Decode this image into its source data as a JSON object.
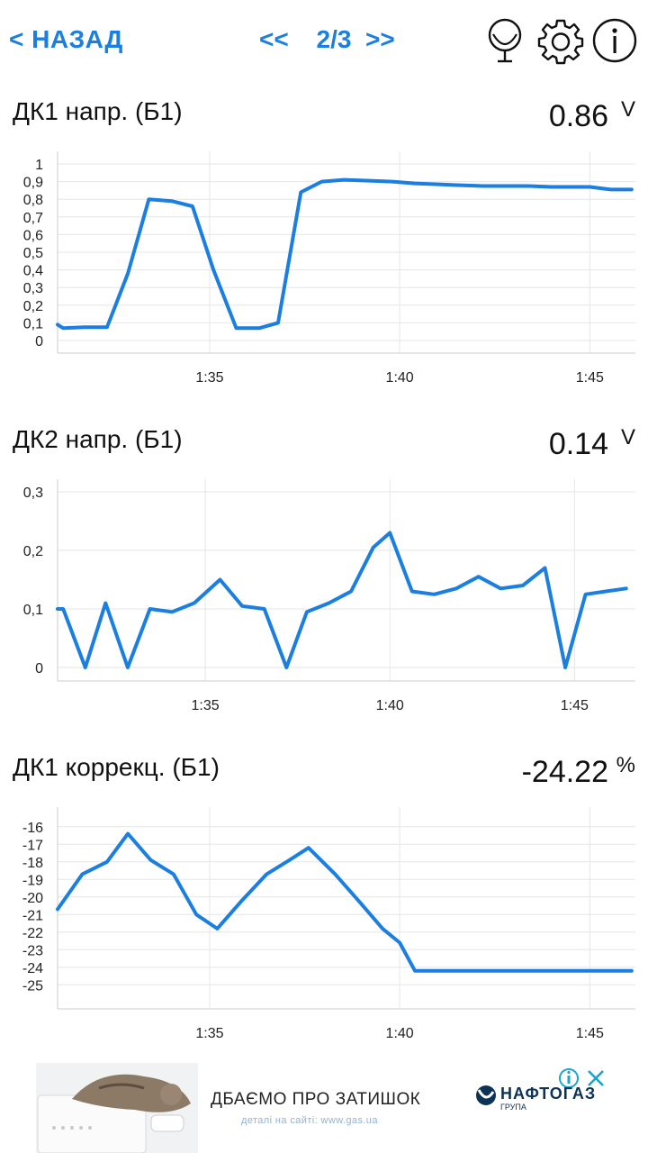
{
  "header": {
    "back_label": "< НАЗАД",
    "prev_label": "<<",
    "page_label": "2/3",
    "next_label": ">>",
    "icons": [
      "mirror-icon",
      "gear-icon",
      "info-icon"
    ]
  },
  "sections": [
    {
      "title": "ДК1 напр. (Б1)",
      "value": "0.86",
      "unit": "V"
    },
    {
      "title": "ДК2 напр. (Б1)",
      "value": "0.14",
      "unit": "V"
    },
    {
      "title": "ДК1 коррекц. (Б1)",
      "value": "-24.22",
      "unit": "%"
    }
  ],
  "chart_data": [
    {
      "type": "line",
      "color": "#1a7fe0",
      "x_ticks": [
        "1:35",
        "1:40",
        "1:45"
      ],
      "y_ticks": [
        "0",
        "0,1",
        "0,2",
        "0,3",
        "0,4",
        "0,5",
        "0,6",
        "0,7",
        "0,8",
        "0,9",
        "1"
      ],
      "ylim": [
        0,
        1
      ],
      "x": [
        "1:31.00",
        "1:31.15",
        "1:31.70",
        "1:32.30",
        "1:32.85",
        "1:33.40",
        "1:34.00",
        "1:34.55",
        "1:35.10",
        "1:35.70",
        "1:36.30",
        "1:36.80",
        "1:37.40",
        "1:37.95",
        "1:38.55",
        "1:39.20",
        "1:39.80",
        "1:40.40",
        "1:40.95",
        "1:41.50",
        "1:42.20",
        "1:42.80",
        "1:43.40",
        "1:44.00",
        "1:44.55",
        "1:45.00",
        "1:45.55",
        "1:46.10"
      ],
      "values": [
        0.09,
        0.07,
        0.075,
        0.075,
        0.38,
        0.8,
        0.79,
        0.76,
        0.4,
        0.07,
        0.07,
        0.1,
        0.84,
        0.9,
        0.91,
        0.905,
        0.9,
        0.89,
        0.885,
        0.88,
        0.875,
        0.875,
        0.875,
        0.87,
        0.87,
        0.87,
        0.855,
        0.855
      ]
    },
    {
      "type": "line",
      "color": "#1a7fe0",
      "x_ticks": [
        "1:35",
        "1:40",
        "1:45"
      ],
      "y_ticks": [
        "0",
        "0,1",
        "0,2",
        "0,3"
      ],
      "ylim": [
        0,
        0.3
      ],
      "x": [
        "1:31.00",
        "1:31.15",
        "1:31.75",
        "1:32.30",
        "1:32.90",
        "1:33.50",
        "1:34.10",
        "1:34.70",
        "1:35.40",
        "1:36.00",
        "1:36.60",
        "1:37.20",
        "1:37.75",
        "1:38.35",
        "1:38.95",
        "1:39.55",
        "1:40.00",
        "1:40.60",
        "1:41.20",
        "1:41.80",
        "1:42.40",
        "1:43.00",
        "1:43.60",
        "1:44.20",
        "1:44.75",
        "1:45.30",
        "1:45.85",
        "1:46.40"
      ],
      "values": [
        0.1,
        0.1,
        0.0,
        0.11,
        0.0,
        0.1,
        0.095,
        0.11,
        0.15,
        0.105,
        0.1,
        0.0,
        0.095,
        0.11,
        0.13,
        0.205,
        0.23,
        0.13,
        0.125,
        0.135,
        0.155,
        0.135,
        0.14,
        0.17,
        0.0,
        0.125,
        0.13,
        0.135
      ]
    },
    {
      "type": "line",
      "color": "#1a7fe0",
      "x_ticks": [
        "1:35",
        "1:40",
        "1:45"
      ],
      "y_ticks": [
        "-25",
        "-24",
        "-23",
        "-22",
        "-21",
        "-20",
        "-19",
        "-18",
        "-17",
        "-16"
      ],
      "ylim": [
        -25.6,
        -15.6
      ],
      "x": [
        "1:31.00",
        "1:31.65",
        "1:32.30",
        "1:32.85",
        "1:33.45",
        "1:34.05",
        "1:34.65",
        "1:35.20",
        "1:35.85",
        "1:36.50",
        "1:37.10",
        "1:37.60",
        "1:38.30",
        "1:38.95",
        "1:39.55",
        "1:40.00",
        "1:40.40",
        "1:41.20",
        "1:42.40",
        "1:43.60",
        "1:44.80",
        "1:46.10"
      ],
      "values": [
        -20.7,
        -18.7,
        -18.0,
        -16.4,
        -17.9,
        -18.7,
        -21.0,
        -21.8,
        -20.2,
        -18.7,
        -17.9,
        -17.2,
        -18.7,
        -20.3,
        -21.8,
        -22.6,
        -24.2,
        -24.2,
        -24.2,
        -24.2,
        -24.2,
        -24.2
      ]
    }
  ],
  "ad": {
    "headline": "ДБАЄМО ПРО ЗАТИШОК",
    "subtext": "деталі на сайті: www.gas.ua",
    "brand": "НАФТОГАЗ",
    "brand_sub": "ГРУПА"
  }
}
